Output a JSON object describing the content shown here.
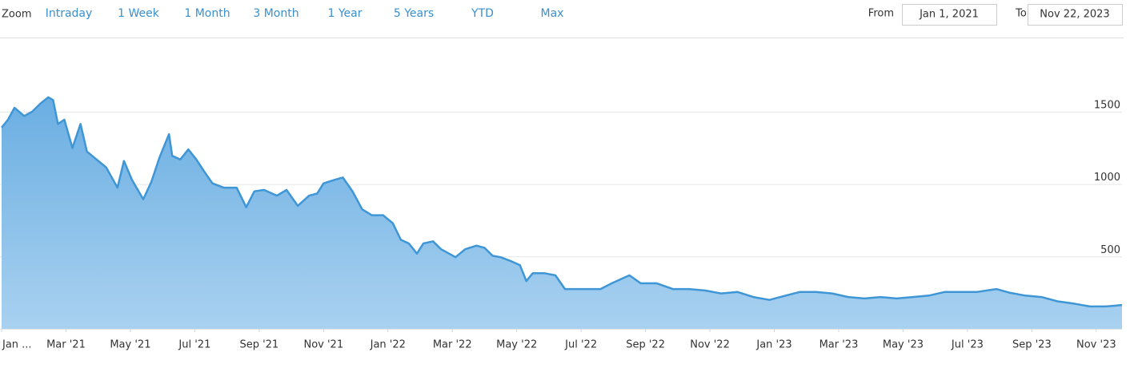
{
  "toolbar": {
    "zoom_label": "Zoom",
    "buttons": [
      "Intraday",
      "1 Week",
      "1 Month",
      "3 Month",
      "1 Year",
      "5 Years",
      "YTD",
      "Max"
    ],
    "from_label": "From",
    "from_value": "Jan 1, 2021",
    "to_label": "To",
    "to_value": "Nov 22, 2023"
  },
  "chart_data": {
    "type": "area",
    "color": "#3f96d6",
    "grid": true,
    "xlim": [
      0,
      34.8
    ],
    "ylim": [
      0,
      2000
    ],
    "yticks": [
      0,
      500,
      1000,
      1500
    ],
    "xticks": [
      {
        "value": 0,
        "label": "Jan ..."
      },
      {
        "value": 2,
        "label": "Mar '21"
      },
      {
        "value": 4,
        "label": "May '21"
      },
      {
        "value": 6,
        "label": "Jul '21"
      },
      {
        "value": 8,
        "label": "Sep '21"
      },
      {
        "value": 10,
        "label": "Nov '21"
      },
      {
        "value": 12,
        "label": "Jan '22"
      },
      {
        "value": 14,
        "label": "Mar '22"
      },
      {
        "value": 16,
        "label": "May '22"
      },
      {
        "value": 18,
        "label": "Jul '22"
      },
      {
        "value": 20,
        "label": "Sep '22"
      },
      {
        "value": 22,
        "label": "Nov '22"
      },
      {
        "value": 24,
        "label": "Jan '23"
      },
      {
        "value": 26,
        "label": "Mar '23"
      },
      {
        "value": 28,
        "label": "May '23"
      },
      {
        "value": 30,
        "label": "Jul '23"
      },
      {
        "value": 32,
        "label": "Sep '23"
      },
      {
        "value": 34,
        "label": "Nov '23"
      }
    ],
    "x": [
      0,
      0.2,
      0.4,
      0.7,
      0.95,
      1.2,
      1.45,
      1.6,
      1.75,
      1.95,
      2.2,
      2.45,
      2.65,
      2.95,
      3.25,
      3.6,
      3.8,
      4.05,
      4.4,
      4.65,
      4.9,
      5.2,
      5.3,
      5.55,
      5.8,
      6.05,
      6.3,
      6.55,
      6.9,
      7.3,
      7.6,
      7.85,
      8.15,
      8.55,
      8.85,
      9.2,
      9.55,
      9.8,
      10.0,
      10.35,
      10.6,
      10.9,
      11.2,
      11.5,
      11.85,
      12.15,
      12.4,
      12.65,
      12.9,
      13.1,
      13.4,
      13.65,
      13.9,
      14.1,
      14.4,
      14.75,
      15.0,
      15.25,
      15.5,
      15.85,
      16.1,
      16.3,
      16.5,
      16.85,
      17.2,
      17.5,
      17.9,
      18.25,
      18.6,
      18.95,
      19.5,
      19.85,
      20.35,
      20.85,
      21.35,
      21.85,
      22.35,
      22.85,
      23.35,
      23.85,
      24.35,
      24.8,
      25.3,
      25.8,
      26.3,
      26.8,
      27.3,
      27.8,
      28.3,
      28.8,
      29.3,
      29.8,
      30.3,
      30.9,
      31.3,
      31.8,
      32.3,
      32.8,
      33.3,
      33.8,
      34.3,
      34.8
    ],
    "values": [
      1390,
      1445,
      1527,
      1470,
      1500,
      1555,
      1600,
      1580,
      1415,
      1445,
      1250,
      1415,
      1225,
      1170,
      1115,
      975,
      1160,
      1030,
      895,
      1015,
      1180,
      1345,
      1195,
      1170,
      1240,
      1170,
      1085,
      1005,
      975,
      975,
      840,
      950,
      960,
      920,
      960,
      850,
      920,
      935,
      1005,
      1030,
      1045,
      950,
      825,
      785,
      785,
      730,
      615,
      590,
      520,
      590,
      605,
      550,
      520,
      495,
      550,
      575,
      560,
      505,
      495,
      465,
      440,
      330,
      385,
      385,
      370,
      275,
      275,
      275,
      275,
      315,
      370,
      315,
      315,
      275,
      275,
      265,
      245,
      255,
      220,
      200,
      230,
      255,
      255,
      245,
      220,
      210,
      220,
      210,
      220,
      230,
      255,
      255,
      255,
      275,
      250,
      230,
      220,
      190,
      175,
      155,
      155,
      165
    ]
  }
}
